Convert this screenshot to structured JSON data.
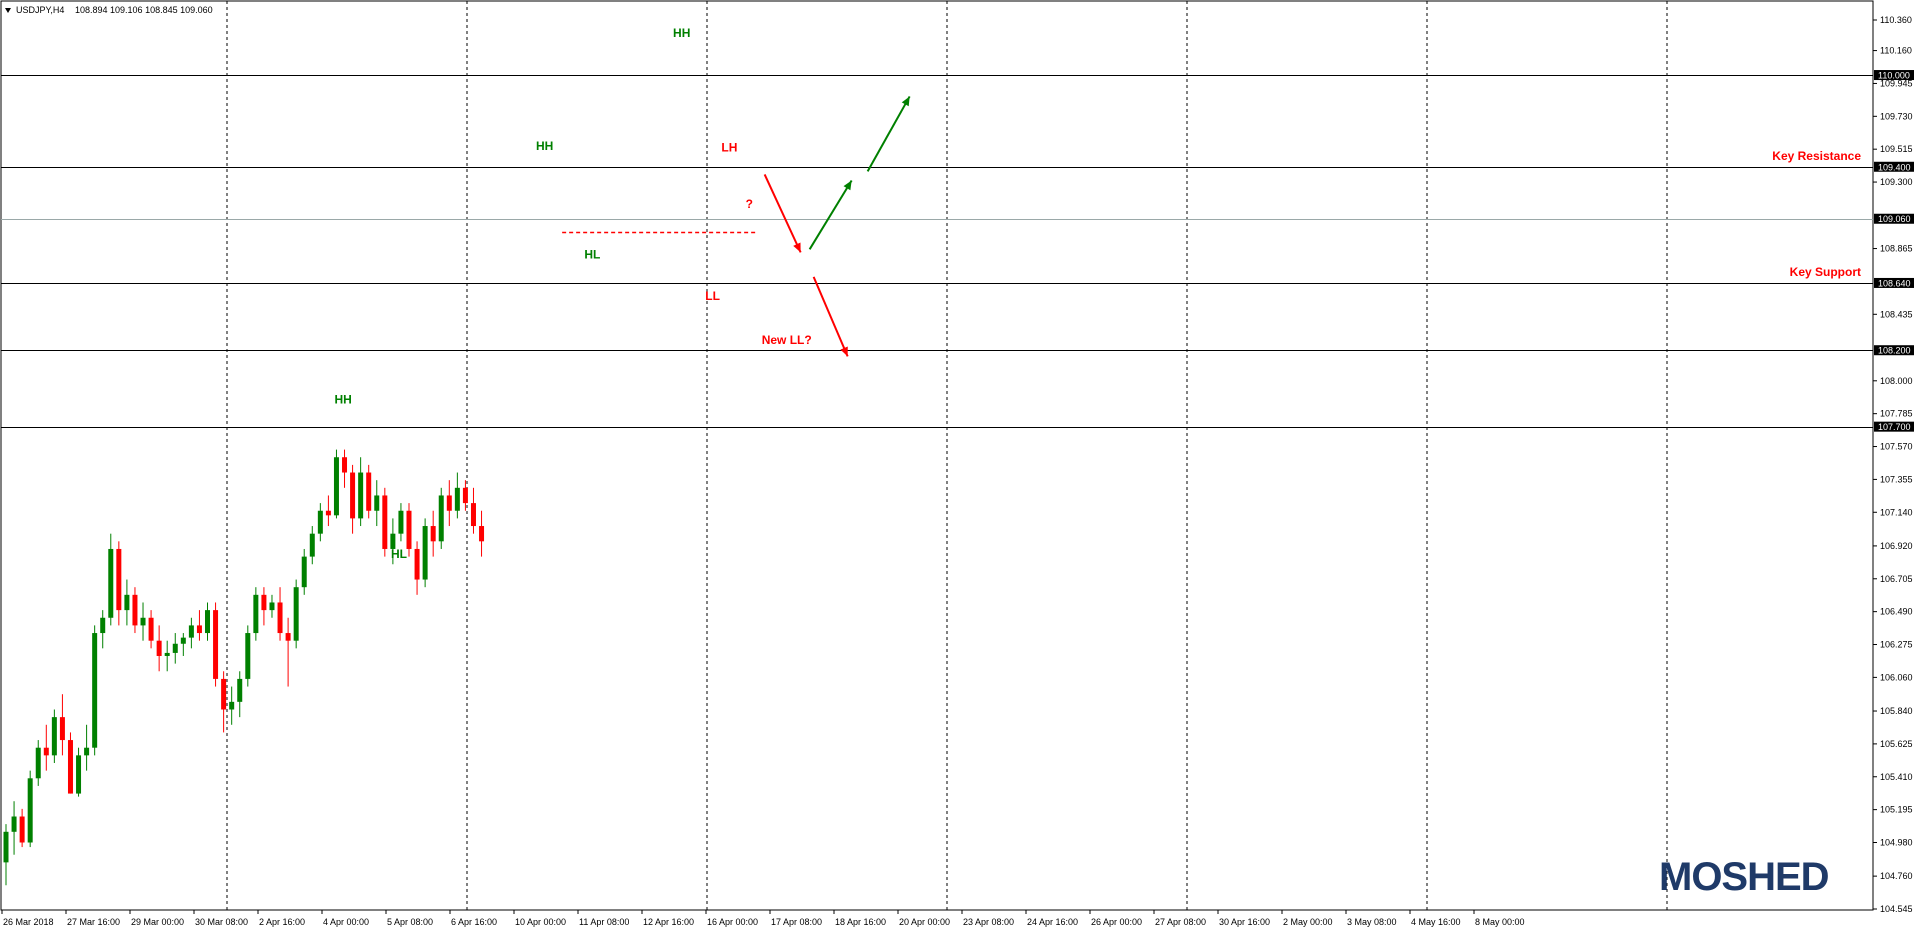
{
  "header": {
    "symbol": "USDJPY,H4",
    "ohlc": "108.894 109.106 108.845 109.060"
  },
  "logo": "MOSHED",
  "colors": {
    "bull": "#008000",
    "bear": "#ff0000",
    "accent_green": "#008000",
    "accent_red": "#ff0000",
    "logo": "#1f3a68"
  },
  "chart_data": {
    "type": "candlestick",
    "ylim": [
      104.545,
      110.36
    ],
    "y_ticks": [
      "110.360",
      "110.160",
      "109.945",
      "109.730",
      "109.515",
      "109.300",
      "108.865",
      "108.435",
      "108.000",
      "107.785",
      "107.570",
      "107.355",
      "107.140",
      "106.920",
      "106.705",
      "106.490",
      "106.275",
      "106.060",
      "105.840",
      "105.625",
      "105.410",
      "105.195",
      "104.980",
      "104.760",
      "104.545"
    ],
    "x_ticks": [
      "26 Mar 2018",
      "27 Mar 16:00",
      "29 Mar 00:00",
      "30 Mar 08:00",
      "2 Apr 16:00",
      "4 Apr 00:00",
      "5 Apr 08:00",
      "6 Apr 16:00",
      "10 Apr 00:00",
      "11 Apr 08:00",
      "12 Apr 16:00",
      "16 Apr 00:00",
      "17 Apr 08:00",
      "18 Apr 16:00",
      "20 Apr 00:00",
      "23 Apr 08:00",
      "24 Apr 16:00",
      "26 Apr 00:00",
      "27 Apr 08:00",
      "30 Apr 16:00",
      "2 May 00:00",
      "3 May 08:00",
      "4 May 16:00",
      "8 May 00:00"
    ],
    "levels": [
      {
        "price": 110.0,
        "label": "110.000"
      },
      {
        "price": 109.4,
        "label": "109.400"
      },
      {
        "price": 109.06,
        "label": "109.060"
      },
      {
        "price": 108.64,
        "label": "108.640"
      },
      {
        "price": 108.2,
        "label": "108.200"
      },
      {
        "price": 107.7,
        "label": "107.700"
      }
    ],
    "zone_labels": [
      {
        "text": "Key Resistance",
        "price": 109.4
      },
      {
        "text": "Key Support",
        "price": 108.64
      }
    ],
    "pivots": [
      {
        "text": "HH",
        "index": 84,
        "price": 110.25,
        "color": "green"
      },
      {
        "text": "HH",
        "index": 67,
        "price": 109.51,
        "color": "green"
      },
      {
        "text": "HL",
        "index": 73,
        "price": 108.8,
        "color": "green"
      },
      {
        "text": "HH",
        "index": 42,
        "price": 107.85,
        "color": "green"
      },
      {
        "text": "HL",
        "index": 49,
        "price": 106.84,
        "color": "green"
      },
      {
        "text": "LH",
        "index": 90,
        "price": 109.5,
        "color": "red"
      },
      {
        "text": "LL",
        "index": 88,
        "price": 108.53,
        "color": "red"
      },
      {
        "text": "?",
        "index": 93,
        "price": 109.13,
        "color": "red"
      },
      {
        "text": "New LL?",
        "index": 95,
        "price": 108.24,
        "color": "red"
      }
    ],
    "candles": [
      [
        104.85,
        105.1,
        104.7,
        105.05
      ],
      [
        105.05,
        105.25,
        104.9,
        105.15
      ],
      [
        105.15,
        105.2,
        104.95,
        104.98
      ],
      [
        104.98,
        105.45,
        104.95,
        105.4
      ],
      [
        105.4,
        105.65,
        105.35,
        105.6
      ],
      [
        105.6,
        105.75,
        105.45,
        105.55
      ],
      [
        105.55,
        105.85,
        105.5,
        105.8
      ],
      [
        105.8,
        105.95,
        105.55,
        105.65
      ],
      [
        105.65,
        105.7,
        105.3,
        105.3
      ],
      [
        105.3,
        105.6,
        105.28,
        105.55
      ],
      [
        105.55,
        105.75,
        105.45,
        105.6
      ],
      [
        105.6,
        106.4,
        105.55,
        106.35
      ],
      [
        106.35,
        106.5,
        106.25,
        106.45
      ],
      [
        106.45,
        107.0,
        106.4,
        106.9
      ],
      [
        106.9,
        106.95,
        106.4,
        106.5
      ],
      [
        106.5,
        106.7,
        106.4,
        106.6
      ],
      [
        106.6,
        106.65,
        106.35,
        106.4
      ],
      [
        106.4,
        106.55,
        106.3,
        106.45
      ],
      [
        106.45,
        106.5,
        106.25,
        106.3
      ],
      [
        106.3,
        106.4,
        106.1,
        106.2
      ],
      [
        106.2,
        106.3,
        106.1,
        106.22
      ],
      [
        106.22,
        106.35,
        106.15,
        106.28
      ],
      [
        106.28,
        106.35,
        106.2,
        106.32
      ],
      [
        106.32,
        106.45,
        106.25,
        106.4
      ],
      [
        106.4,
        106.5,
        106.3,
        106.35
      ],
      [
        106.35,
        106.55,
        106.3,
        106.5
      ],
      [
        106.5,
        106.55,
        106.0,
        106.05
      ],
      [
        106.05,
        106.1,
        105.7,
        105.85
      ],
      [
        105.85,
        106.0,
        105.75,
        105.9
      ],
      [
        105.9,
        106.1,
        105.8,
        106.05
      ],
      [
        106.05,
        106.4,
        106.0,
        106.35
      ],
      [
        106.35,
        106.65,
        106.3,
        106.6
      ],
      [
        106.6,
        106.65,
        106.4,
        106.5
      ],
      [
        106.5,
        106.6,
        106.45,
        106.55
      ],
      [
        106.55,
        106.65,
        106.3,
        106.35
      ],
      [
        106.35,
        106.45,
        106.0,
        106.3
      ],
      [
        106.3,
        106.7,
        106.25,
        106.65
      ],
      [
        106.65,
        106.9,
        106.6,
        106.85
      ],
      [
        106.85,
        107.05,
        106.8,
        107.0
      ],
      [
        107.0,
        107.2,
        106.95,
        107.15
      ],
      [
        107.15,
        107.25,
        107.05,
        107.12
      ],
      [
        107.12,
        107.55,
        107.1,
        107.5
      ],
      [
        107.5,
        107.55,
        107.3,
        107.4
      ],
      [
        107.4,
        107.45,
        107.0,
        107.1
      ],
      [
        107.1,
        107.5,
        107.05,
        107.4
      ],
      [
        107.4,
        107.45,
        107.1,
        107.15
      ],
      [
        107.15,
        107.35,
        107.05,
        107.25
      ],
      [
        107.25,
        107.3,
        106.85,
        106.9
      ],
      [
        106.9,
        107.1,
        106.8,
        107.0
      ],
      [
        107.0,
        107.2,
        106.95,
        107.15
      ],
      [
        107.15,
        107.2,
        106.85,
        106.9
      ],
      [
        106.9,
        106.95,
        106.6,
        106.7
      ],
      [
        106.7,
        107.1,
        106.65,
        107.05
      ],
      [
        107.05,
        107.15,
        106.85,
        106.95
      ],
      [
        106.95,
        107.3,
        106.9,
        107.25
      ],
      [
        107.25,
        107.35,
        107.05,
        107.15
      ],
      [
        107.15,
        107.4,
        107.1,
        107.3
      ],
      [
        107.3,
        107.35,
        107.15,
        107.2
      ],
      [
        107.2,
        107.3,
        107.0,
        107.05
      ],
      [
        107.05,
        107.15,
        106.85,
        106.95
      ]
    ]
  }
}
